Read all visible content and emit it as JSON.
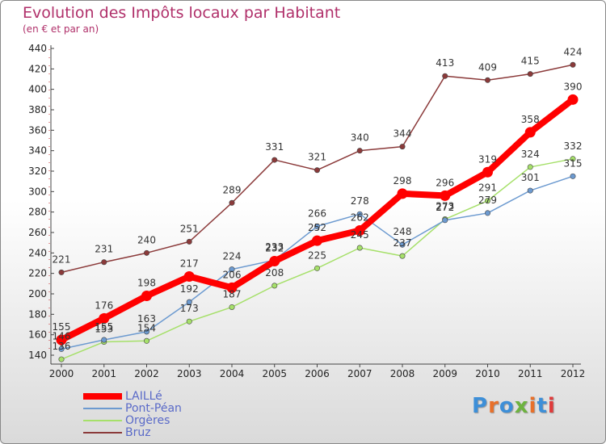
{
  "title": "Evolution des Impôts locaux par Habitant",
  "subtitle": "(en € et par an)",
  "logo": {
    "text": "Proxiti",
    "colors": [
      "#3d8fd8",
      "#e8702a",
      "#3d8fd8",
      "#6db33f",
      "#e8702a",
      "#3d8fd8",
      "#e03b3b"
    ]
  },
  "chart_data": {
    "type": "line",
    "title": "Evolution des Impôts locaux par Habitant",
    "ylabel": "(en € et par an)",
    "xlabel": "",
    "ylim": [
      140,
      440
    ],
    "y_ticks": [
      "140",
      "160",
      "180",
      "200",
      "220",
      "240",
      "260",
      "280",
      "300",
      "320",
      "340",
      "360",
      "380",
      "400",
      "420",
      "440"
    ],
    "categories": [
      "2000",
      "2001",
      "2002",
      "2003",
      "2004",
      "2005",
      "2006",
      "2007",
      "2008",
      "2009",
      "2010",
      "2011",
      "2012"
    ],
    "series": [
      {
        "name": "Bruz",
        "color": "#8b3a3a",
        "values": [
          221,
          231,
          240,
          251,
          289,
          331,
          321,
          340,
          344,
          413,
          409,
          415,
          424
        ]
      },
      {
        "name": "Orgères",
        "color": "#a6e06a",
        "values": [
          136,
          153,
          154,
          173,
          187,
          208,
          225,
          245,
          237,
          273,
          291,
          324,
          332
        ]
      },
      {
        "name": "Pont-Péan",
        "color": "#6c9ad0",
        "values": [
          146,
          155,
          163,
          192,
          224,
          233,
          266,
          278,
          248,
          272,
          279,
          301,
          315
        ]
      },
      {
        "name": "LAILLé",
        "color": "#ff0000",
        "values": [
          155,
          176,
          198,
          217,
          206,
          232,
          252,
          262,
          298,
          296,
          319,
          358,
          390
        ]
      }
    ],
    "legend_order": [
      "LAILLé",
      "Pont-Péan",
      "Orgères",
      "Bruz"
    ],
    "grid": false
  }
}
